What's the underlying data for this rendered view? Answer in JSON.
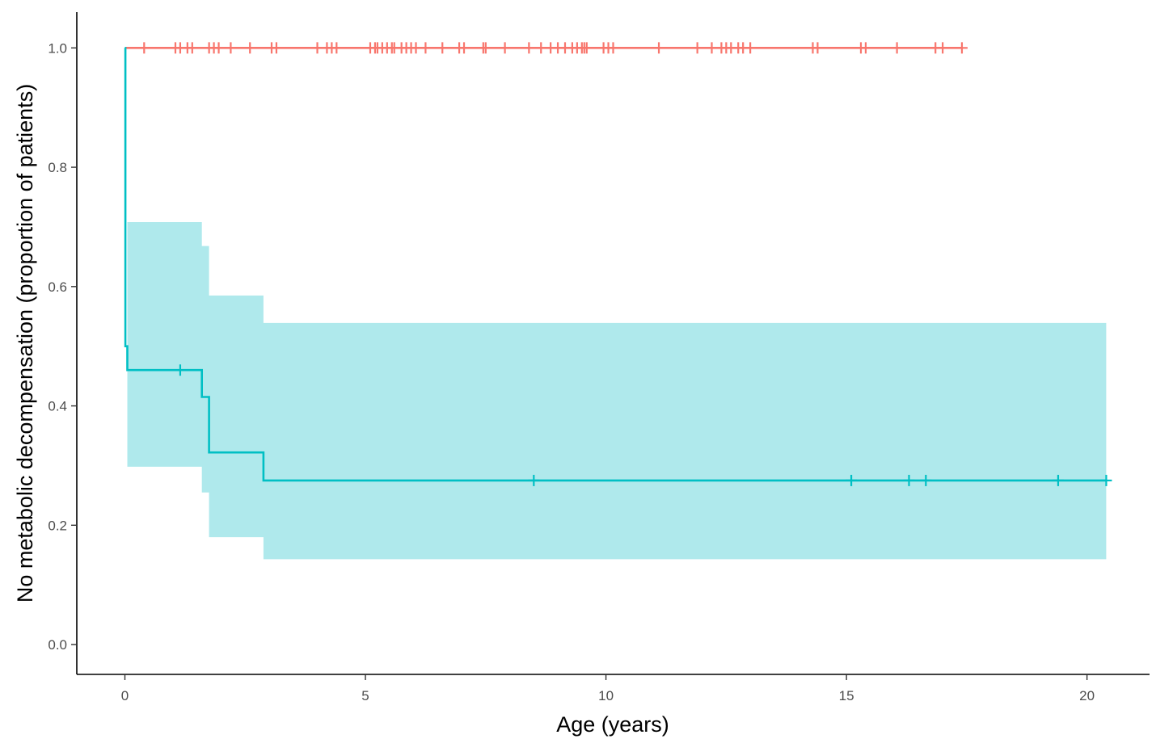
{
  "chart_data": {
    "type": "line",
    "title": "",
    "xlabel": "Age (years)",
    "ylabel": "No metabolic decompensation (proportion of patients)",
    "xlim": [
      -1,
      21.3
    ],
    "ylim": [
      -0.05,
      1.06
    ],
    "x_ticks": [
      0,
      5,
      10,
      15,
      20
    ],
    "x_tick_labels": [
      "0",
      "5",
      "10",
      "15",
      "20"
    ],
    "y_ticks": [
      0.0,
      0.2,
      0.4,
      0.6,
      0.8,
      1.0
    ],
    "y_tick_labels": [
      "0.0",
      "0.2",
      "0.4",
      "0.6",
      "0.8",
      "1.0"
    ],
    "grid": false,
    "legend": "none",
    "series": [
      {
        "color": "#F8766D",
        "steps": [
          [
            0,
            1.0
          ],
          [
            17.4,
            1.0
          ]
        ],
        "censors": [
          0.4,
          1.05,
          1.15,
          1.3,
          1.4,
          1.75,
          1.85,
          1.95,
          2.2,
          2.6,
          3.05,
          3.15,
          4.0,
          4.2,
          4.3,
          4.4,
          5.1,
          5.2,
          5.25,
          5.35,
          5.45,
          5.55,
          5.6,
          5.75,
          5.85,
          5.95,
          6.05,
          6.25,
          6.6,
          6.95,
          7.05,
          7.45,
          7.5,
          7.9,
          8.4,
          8.65,
          8.85,
          9.0,
          9.15,
          9.3,
          9.4,
          9.5,
          9.55,
          9.6,
          9.95,
          10.05,
          10.15,
          11.1,
          11.9,
          12.2,
          12.4,
          12.5,
          12.6,
          12.75,
          12.85,
          13.0,
          14.3,
          14.4,
          15.3,
          15.4,
          16.05,
          16.85,
          17.0,
          17.4
        ]
      },
      {
        "color": "#00BFC4",
        "band_color": "#AFE9EC",
        "steps": [
          [
            0,
            1.0
          ],
          [
            0.01,
            0.5
          ],
          [
            0.05,
            0.46
          ],
          [
            1.6,
            0.415
          ],
          [
            1.75,
            0.322
          ],
          [
            2.88,
            0.275
          ],
          [
            20.4,
            0.275
          ]
        ],
        "band": [
          [
            0,
            0.0,
            0.0
          ],
          [
            0.05,
            0.298,
            0.708
          ],
          [
            1.6,
            0.255,
            0.668
          ],
          [
            1.75,
            0.18,
            0.585
          ],
          [
            2.88,
            0.143,
            0.539
          ],
          [
            20.4,
            0.143,
            0.539
          ]
        ],
        "censors": [
          1.15,
          8.5,
          15.1,
          16.3,
          16.65,
          19.4,
          20.4
        ]
      }
    ]
  }
}
